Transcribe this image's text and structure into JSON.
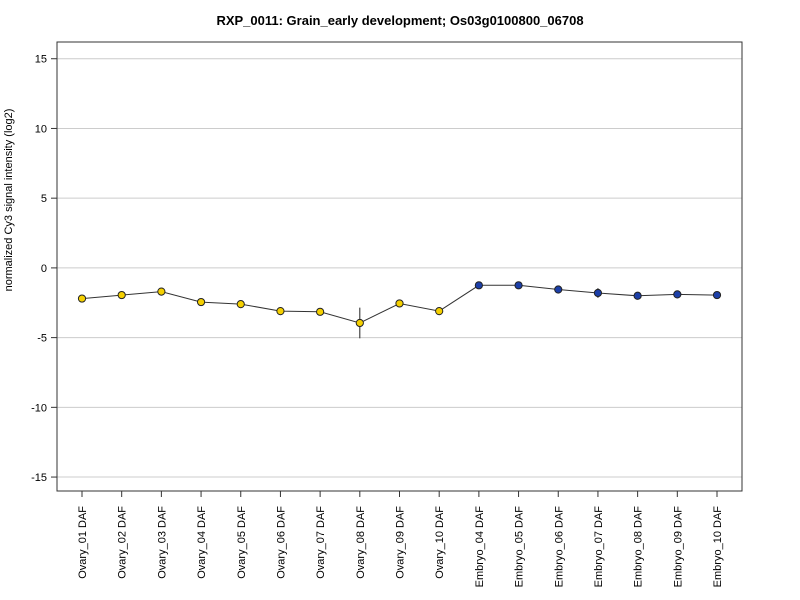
{
  "chart_data": {
    "type": "line",
    "title": "RXP_0011: Grain_early development; Os03g0100800_06708",
    "ylabel": "normalized Cy3 signal intensity (log2)",
    "xlabel": "",
    "ylim": [
      -16,
      16.2
    ],
    "yticks": [
      -15,
      -10,
      -5,
      0,
      5,
      10,
      15
    ],
    "grid": true,
    "categories": [
      "Ovary_01 DAF",
      "Ovary_02 DAF",
      "Ovary_03 DAF",
      "Ovary_04 DAF",
      "Ovary_05 DAF",
      "Ovary_06 DAF",
      "Ovary_07 DAF",
      "Ovary_08 DAF",
      "Ovary_09 DAF",
      "Ovary_10 DAF",
      "Embryo_04 DAF",
      "Embryo_05 DAF",
      "Embryo_06 DAF",
      "Embryo_07 DAF",
      "Embryo_08 DAF",
      "Embryo_09 DAF",
      "Embryo_10 DAF"
    ],
    "values": [
      -2.2,
      -1.95,
      -1.7,
      -2.45,
      -2.6,
      -3.1,
      -3.15,
      -3.95,
      -2.55,
      -3.1,
      -1.25,
      -1.25,
      -1.55,
      -1.8,
      -2.0,
      -1.9,
      -1.95
    ],
    "errors": [
      0.1,
      0.05,
      0.05,
      0.05,
      0.05,
      0.05,
      0.05,
      1.1,
      0.1,
      0.1,
      0.05,
      0.05,
      0.1,
      0.35,
      0.05,
      0.1,
      0.05
    ],
    "point_colors": [
      "#f5d000",
      "#f5d000",
      "#f5d000",
      "#f5d000",
      "#f5d000",
      "#f5d000",
      "#f5d000",
      "#f5d000",
      "#f5d000",
      "#f5d000",
      "#1c3fa8",
      "#1c3fa8",
      "#1c3fa8",
      "#1c3fa8",
      "#1c3fa8",
      "#1c3fa8",
      "#1c3fa8"
    ]
  }
}
